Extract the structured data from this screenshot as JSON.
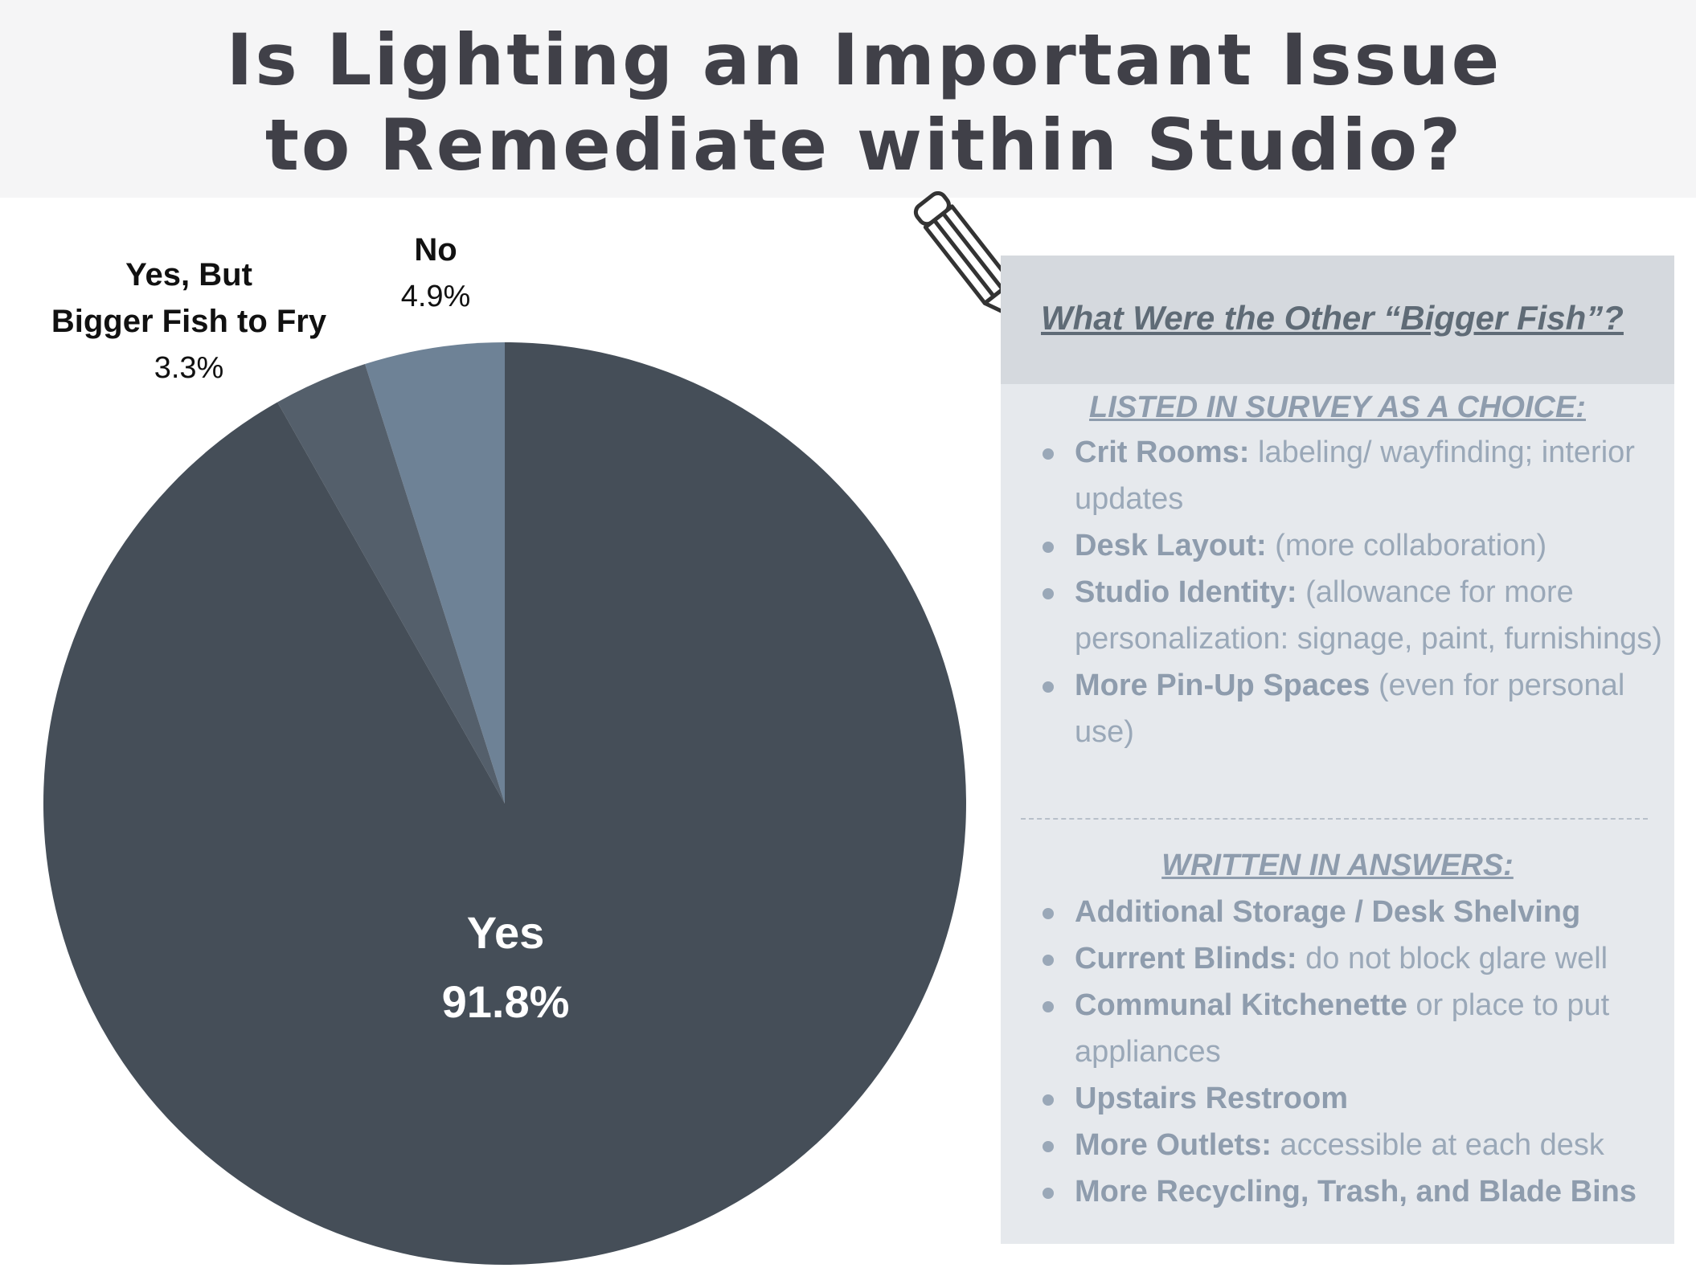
{
  "title": {
    "line1": "Is Lighting an Important Issue",
    "line2": "to Remediate within Studio?"
  },
  "chart_data": {
    "type": "pie",
    "title": "Is Lighting an Important Issue to Remediate within Studio?",
    "slices": [
      {
        "label": "No",
        "value": 4.9,
        "display": "4.9%",
        "color": "#6e8296"
      },
      {
        "label": "Yes, But Bigger Fish to Fry",
        "label_line1": "Yes, But",
        "label_line2": "Bigger Fish to Fry",
        "value": 3.3,
        "display": "3.3%",
        "color": "#545f6b"
      },
      {
        "label": "Yes",
        "value": 91.8,
        "display": "91.8%",
        "color": "#454e58"
      }
    ]
  },
  "panel": {
    "title": "What Were the Other “Bigger Fish”?",
    "section1": {
      "heading": "LISTED IN SURVEY AS A CHOICE:",
      "items": [
        {
          "bold": "Crit Rooms:",
          "rest": " labeling/ wayfinding; interior updates"
        },
        {
          "bold": "Desk Layout:",
          "rest": " (more collaboration)"
        },
        {
          "bold": "Studio Identity:",
          "rest": " (allowance for more personalization: signage, paint, furnishings)"
        },
        {
          "bold": "More Pin-Up Spaces",
          "rest": " (even for personal use)"
        }
      ]
    },
    "section2": {
      "heading": "WRITTEN IN ANSWERS:",
      "items": [
        {
          "bold": "Additional Storage / Desk Shelving",
          "rest": ""
        },
        {
          "bold": "Current Blinds:",
          "rest": " do not block glare well"
        },
        {
          "bold": "Communal Kitchenette",
          "rest": " or place to put appliances"
        },
        {
          "bold": "Upstairs Restroom",
          "rest": ""
        },
        {
          "bold": "More Outlets:",
          "rest": " accessible at each desk"
        },
        {
          "bold": "More Recycling, Trash, and Blade Bins",
          "rest": ""
        }
      ]
    }
  },
  "icons": {
    "pencil": "pencil-icon"
  }
}
